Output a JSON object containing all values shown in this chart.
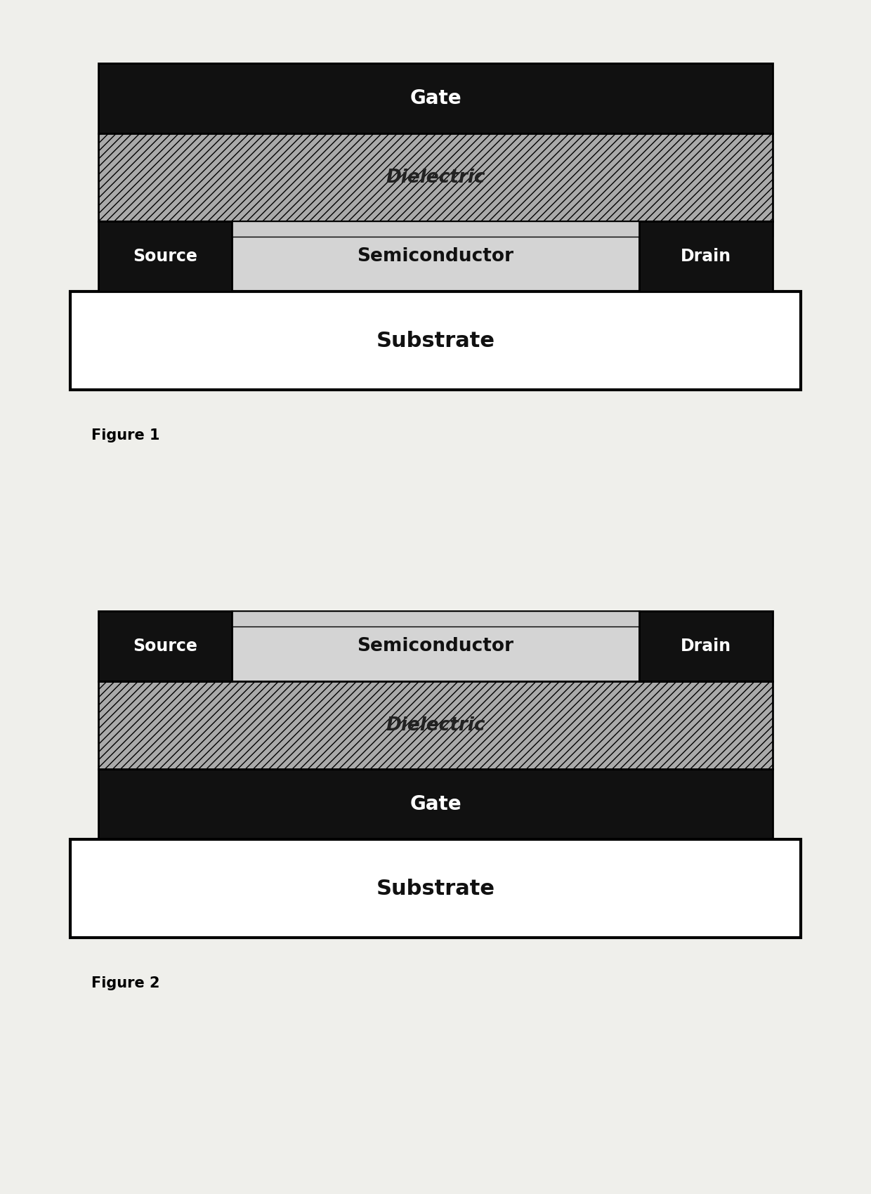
{
  "bg_color": "#efefeb",
  "fig_width": 12.4,
  "fig_height": 17.0,
  "layers": {
    "gate": {
      "label": "Gate",
      "color": "#111111",
      "text_color": "#ffffff",
      "font_size": 20
    },
    "dielectric_color": "#aaaaaa",
    "dielectric_hatch": "///",
    "dielectric_label": "Dielectric",
    "dielectric_text_color": "#222222",
    "dielectric_font_size": 19,
    "semiconductor_color": "#d4d4d4",
    "semiconductor_label": "Semiconductor",
    "semiconductor_text_color": "#111111",
    "semiconductor_font_size": 19,
    "source_drain_color": "#111111",
    "source_drain_text_color": "#ffffff",
    "source_drain_font_size": 17,
    "substrate_color": "#ffffff",
    "substrate_text_color": "#111111",
    "substrate_font_size": 22
  },
  "caption_fontsize": 15,
  "fig1_caption": "Figure 1",
  "fig2_caption": "Figure 2"
}
